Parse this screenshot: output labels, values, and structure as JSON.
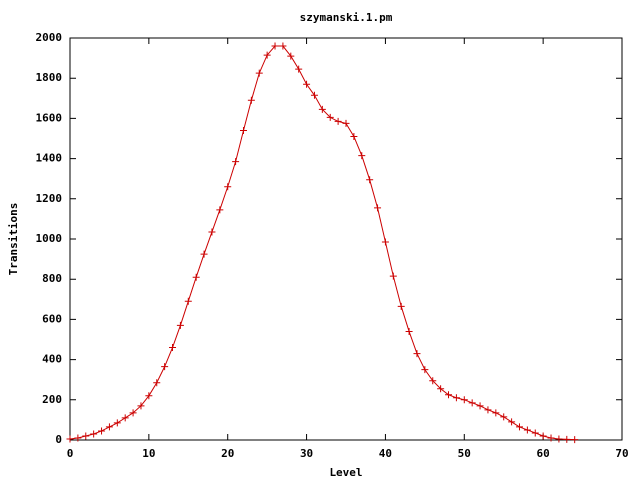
{
  "chart_data": {
    "type": "line",
    "title": "szymanski.1.pm",
    "x_label": "Level",
    "y_label": "Transitions",
    "x": [
      0,
      1,
      2,
      3,
      4,
      5,
      6,
      7,
      8,
      9,
      10,
      11,
      12,
      13,
      14,
      15,
      16,
      17,
      18,
      19,
      20,
      21,
      22,
      23,
      24,
      25,
      26,
      27,
      28,
      29,
      30,
      31,
      32,
      33,
      34,
      35,
      36,
      37,
      38,
      39,
      40,
      41,
      42,
      43,
      44,
      45,
      46,
      47,
      48,
      49,
      50,
      51,
      52,
      53,
      54,
      55,
      56,
      57,
      58,
      59,
      60,
      61,
      62,
      63,
      64
    ],
    "series": [
      {
        "color": "#cc0000",
        "marker": "plus",
        "values": [
          5,
          10,
          20,
          30,
          45,
          65,
          85,
          110,
          135,
          170,
          220,
          285,
          365,
          460,
          570,
          690,
          810,
          925,
          1035,
          1145,
          1260,
          1385,
          1540,
          1690,
          1825,
          1915,
          1960,
          1960,
          1910,
          1845,
          1770,
          1715,
          1645,
          1605,
          1585,
          1575,
          1510,
          1415,
          1295,
          1155,
          985,
          815,
          665,
          540,
          430,
          350,
          295,
          255,
          225,
          210,
          200,
          185,
          170,
          150,
          135,
          115,
          90,
          65,
          50,
          35,
          20,
          10,
          5,
          3,
          2
        ]
      }
    ],
    "xlim": [
      0,
      70
    ],
    "ylim": [
      0,
      2000
    ],
    "xticks": [
      0,
      10,
      20,
      30,
      40,
      50,
      60,
      70
    ],
    "yticks": [
      0,
      200,
      400,
      600,
      800,
      1000,
      1200,
      1400,
      1600,
      1800,
      2000
    ]
  }
}
